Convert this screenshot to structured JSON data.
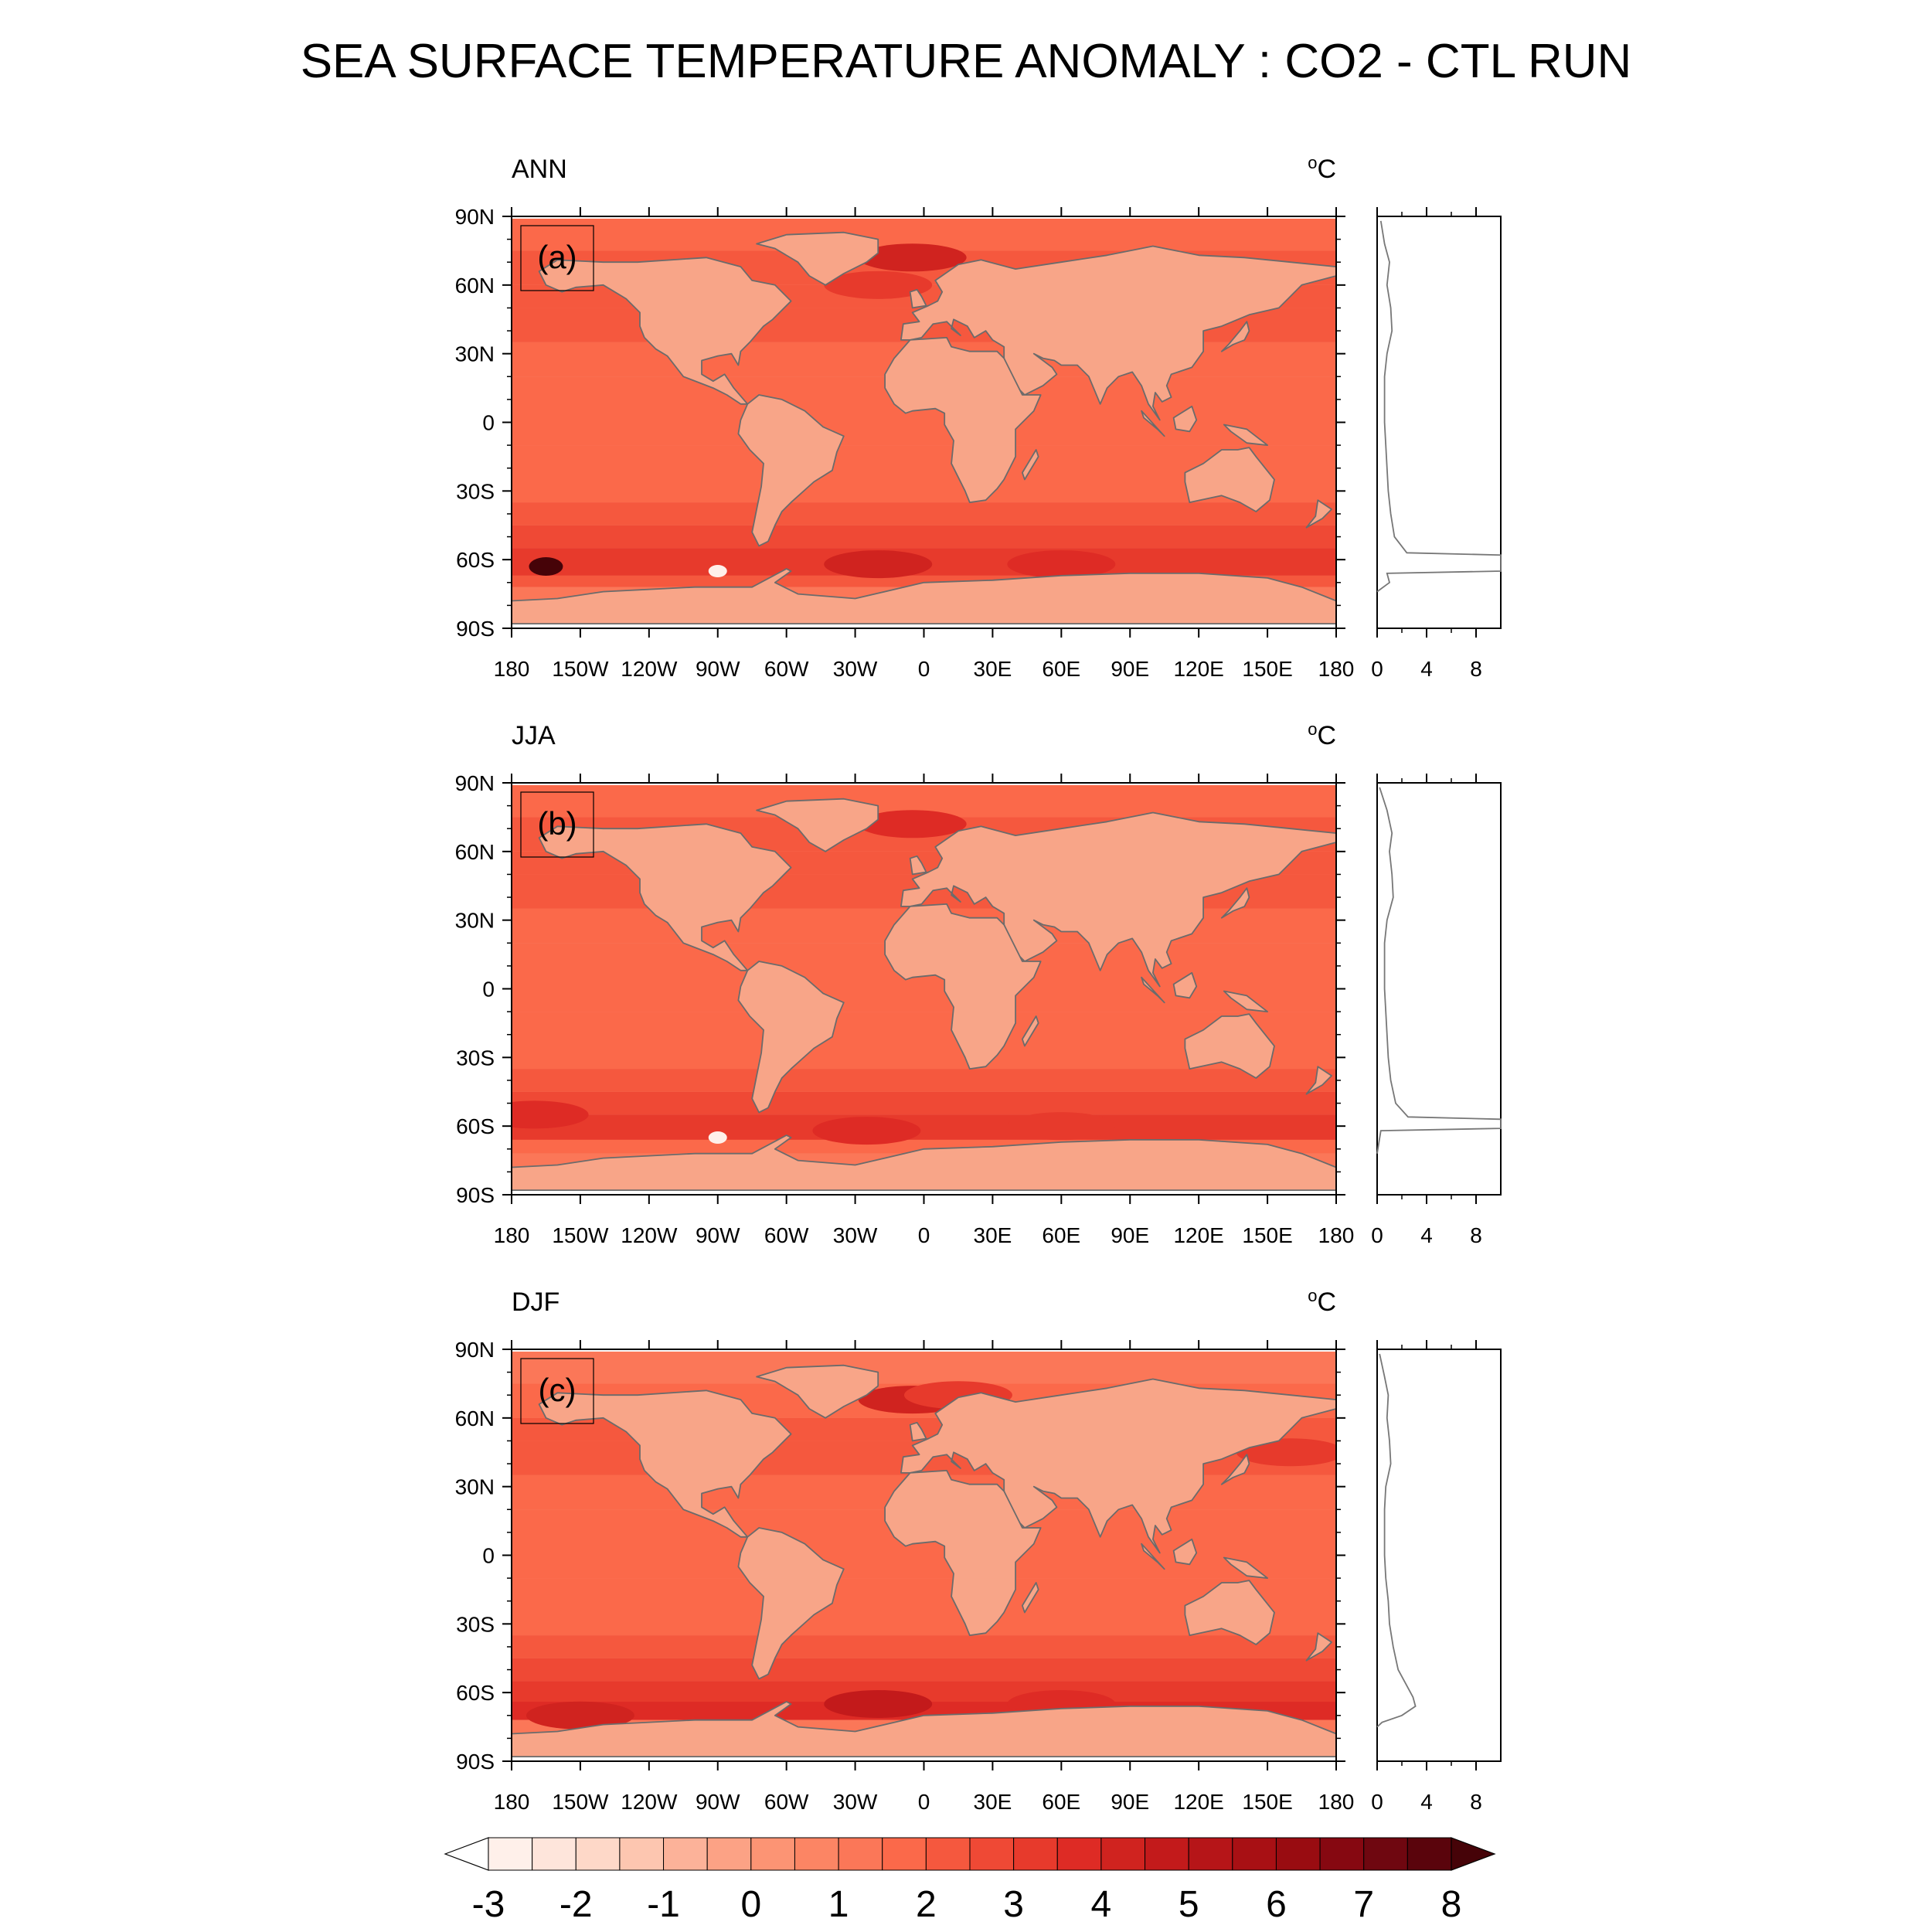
{
  "title": "SEA SURFACE TEMPERATURE ANOMALY : CO2 - CTL RUN",
  "colors": {
    "land": "#f8a588",
    "ocean_base": "#f8957a",
    "coast": "#6b6b6b",
    "axis": "#000000",
    "profile_line": "#777777"
  },
  "chart_data": [
    {
      "type": "heatmap",
      "title": "ANN",
      "panel_label": "(a)",
      "unit": "oC",
      "ylim": [
        -90,
        90
      ],
      "xlim": [
        -180,
        180
      ],
      "x_ticks": [
        "180",
        "150W",
        "120W",
        "90W",
        "60W",
        "30W",
        "0",
        "30E",
        "60E",
        "90E",
        "120E",
        "150E",
        "180"
      ],
      "y_ticks": [
        "90N",
        "60N",
        "30N",
        "0",
        "30S",
        "60S",
        "90S"
      ],
      "zonal_bands": [
        {
          "lat_from": 89,
          "lat_to": 75,
          "value": 1.5
        },
        {
          "lat_from": 75,
          "lat_to": 60,
          "value": 2.0
        },
        {
          "lat_from": 60,
          "lat_to": 50,
          "value": 2.0
        },
        {
          "lat_from": 50,
          "lat_to": 35,
          "value": 2.3
        },
        {
          "lat_from": 35,
          "lat_to": 20,
          "value": 1.8
        },
        {
          "lat_from": 20,
          "lat_to": -10,
          "value": 1.7
        },
        {
          "lat_from": -10,
          "lat_to": -35,
          "value": 1.8
        },
        {
          "lat_from": -35,
          "lat_to": -45,
          "value": 2.2
        },
        {
          "lat_from": -45,
          "lat_to": -55,
          "value": 2.6
        },
        {
          "lat_from": -55,
          "lat_to": -67,
          "value": 3.2
        },
        {
          "lat_from": -67,
          "lat_to": -72,
          "value": 2.0
        },
        {
          "lat_from": -72,
          "lat_to": -88,
          "value": 1.2
        }
      ],
      "hotspots": [
        {
          "lon": -5,
          "lat": 72,
          "value": 4.0
        },
        {
          "lon": -20,
          "lat": 60,
          "value": 3.0
        },
        {
          "lon": -165,
          "lat": -63,
          "value": 8.0
        },
        {
          "lon": -20,
          "lat": -62,
          "value": 4.3
        },
        {
          "lon": 60,
          "lat": -62,
          "value": 3.5
        },
        {
          "lon": -90,
          "lat": -65,
          "value": -3.0
        }
      ],
      "profile": {
        "xlim": [
          0,
          10
        ],
        "x_ticks": [
          0,
          4,
          8
        ],
        "points": [
          {
            "lat": 88,
            "value": 0.3
          },
          {
            "lat": 78,
            "value": 0.6
          },
          {
            "lat": 70,
            "value": 1.0
          },
          {
            "lat": 60,
            "value": 0.8
          },
          {
            "lat": 50,
            "value": 1.1
          },
          {
            "lat": 40,
            "value": 1.2
          },
          {
            "lat": 30,
            "value": 0.8
          },
          {
            "lat": 20,
            "value": 0.6
          },
          {
            "lat": 10,
            "value": 0.6
          },
          {
            "lat": 0,
            "value": 0.6
          },
          {
            "lat": -10,
            "value": 0.7
          },
          {
            "lat": -20,
            "value": 0.8
          },
          {
            "lat": -30,
            "value": 0.9
          },
          {
            "lat": -40,
            "value": 1.1
          },
          {
            "lat": -50,
            "value": 1.4
          },
          {
            "lat": -57,
            "value": 2.4
          },
          {
            "lat": -58,
            "value": 10.0
          },
          {
            "lat": -65,
            "value": 10.0
          },
          {
            "lat": -66,
            "value": 0.8
          },
          {
            "lat": -70,
            "value": 1.0
          },
          {
            "lat": -74,
            "value": 0.0
          }
        ]
      }
    },
    {
      "type": "heatmap",
      "title": "JJA",
      "panel_label": "(b)",
      "unit": "oC",
      "ylim": [
        -90,
        90
      ],
      "xlim": [
        -180,
        180
      ],
      "x_ticks": [
        "180",
        "150W",
        "120W",
        "90W",
        "60W",
        "30W",
        "0",
        "30E",
        "60E",
        "90E",
        "120E",
        "150E",
        "180"
      ],
      "y_ticks": [
        "90N",
        "60N",
        "30N",
        "0",
        "30S",
        "60S",
        "90S"
      ],
      "zonal_bands": [
        {
          "lat_from": 89,
          "lat_to": 75,
          "value": 1.6
        },
        {
          "lat_from": 75,
          "lat_to": 60,
          "value": 2.2
        },
        {
          "lat_from": 60,
          "lat_to": 50,
          "value": 2.2
        },
        {
          "lat_from": 50,
          "lat_to": 35,
          "value": 2.4
        },
        {
          "lat_from": 35,
          "lat_to": 20,
          "value": 1.9
        },
        {
          "lat_from": 20,
          "lat_to": -10,
          "value": 1.7
        },
        {
          "lat_from": -10,
          "lat_to": -35,
          "value": 1.8
        },
        {
          "lat_from": -35,
          "lat_to": -45,
          "value": 2.2
        },
        {
          "lat_from": -45,
          "lat_to": -55,
          "value": 2.7
        },
        {
          "lat_from": -55,
          "lat_to": -66,
          "value": 3.1
        },
        {
          "lat_from": -66,
          "lat_to": -72,
          "value": 1.7
        },
        {
          "lat_from": -72,
          "lat_to": -88,
          "value": 1.2
        }
      ],
      "hotspots": [
        {
          "lon": -5,
          "lat": 72,
          "value": 3.5
        },
        {
          "lon": -170,
          "lat": -55,
          "value": 3.8
        },
        {
          "lon": -25,
          "lat": -62,
          "value": 3.8
        },
        {
          "lon": 60,
          "lat": -60,
          "value": 3.3
        },
        {
          "lon": -90,
          "lat": -65,
          "value": -3.0
        }
      ],
      "profile": {
        "xlim": [
          0,
          10
        ],
        "x_ticks": [
          0,
          4,
          8
        ],
        "points": [
          {
            "lat": 88,
            "value": 0.2
          },
          {
            "lat": 78,
            "value": 0.8
          },
          {
            "lat": 68,
            "value": 1.2
          },
          {
            "lat": 60,
            "value": 1.0
          },
          {
            "lat": 50,
            "value": 1.2
          },
          {
            "lat": 40,
            "value": 1.3
          },
          {
            "lat": 30,
            "value": 0.8
          },
          {
            "lat": 20,
            "value": 0.6
          },
          {
            "lat": 10,
            "value": 0.6
          },
          {
            "lat": 0,
            "value": 0.6
          },
          {
            "lat": -10,
            "value": 0.7
          },
          {
            "lat": -20,
            "value": 0.8
          },
          {
            "lat": -30,
            "value": 0.9
          },
          {
            "lat": -40,
            "value": 1.1
          },
          {
            "lat": -50,
            "value": 1.5
          },
          {
            "lat": -56,
            "value": 2.5
          },
          {
            "lat": -57,
            "value": 10.0
          },
          {
            "lat": -61,
            "value": 10.0
          },
          {
            "lat": -62,
            "value": 0.3
          },
          {
            "lat": -72,
            "value": 0.0
          }
        ]
      }
    },
    {
      "type": "heatmap",
      "title": "DJF",
      "panel_label": "(c)",
      "unit": "oC",
      "ylim": [
        -90,
        90
      ],
      "xlim": [
        -180,
        180
      ],
      "x_ticks": [
        "180",
        "150W",
        "120W",
        "90W",
        "60W",
        "30W",
        "0",
        "30E",
        "60E",
        "90E",
        "120E",
        "150E",
        "180"
      ],
      "y_ticks": [
        "90N",
        "60N",
        "30N",
        "0",
        "30S",
        "60S",
        "90S"
      ],
      "zonal_bands": [
        {
          "lat_from": 89,
          "lat_to": 75,
          "value": 1.4
        },
        {
          "lat_from": 75,
          "lat_to": 60,
          "value": 1.9
        },
        {
          "lat_from": 60,
          "lat_to": 50,
          "value": 2.0
        },
        {
          "lat_from": 50,
          "lat_to": 35,
          "value": 2.3
        },
        {
          "lat_from": 35,
          "lat_to": 20,
          "value": 1.8
        },
        {
          "lat_from": 20,
          "lat_to": -10,
          "value": 1.7
        },
        {
          "lat_from": -10,
          "lat_to": -35,
          "value": 1.8
        },
        {
          "lat_from": -35,
          "lat_to": -45,
          "value": 2.2
        },
        {
          "lat_from": -45,
          "lat_to": -55,
          "value": 2.6
        },
        {
          "lat_from": -55,
          "lat_to": -64,
          "value": 3.2
        },
        {
          "lat_from": -64,
          "lat_to": -72,
          "value": 3.6
        },
        {
          "lat_from": -72,
          "lat_to": -88,
          "value": 1.2
        }
      ],
      "hotspots": [
        {
          "lon": -5,
          "lat": 68,
          "value": 4.0
        },
        {
          "lon": 15,
          "lat": 70,
          "value": 3.2
        },
        {
          "lon": -20,
          "lat": -65,
          "value": 4.8
        },
        {
          "lon": 60,
          "lat": -65,
          "value": 3.8
        },
        {
          "lon": -150,
          "lat": -70,
          "value": 4.0
        },
        {
          "lon": 160,
          "lat": 45,
          "value": 3.0
        }
      ],
      "profile": {
        "xlim": [
          0,
          10
        ],
        "x_ticks": [
          0,
          4,
          8
        ],
        "points": [
          {
            "lat": 88,
            "value": 0.2
          },
          {
            "lat": 78,
            "value": 0.6
          },
          {
            "lat": 70,
            "value": 0.9
          },
          {
            "lat": 60,
            "value": 0.8
          },
          {
            "lat": 50,
            "value": 1.0
          },
          {
            "lat": 40,
            "value": 1.1
          },
          {
            "lat": 30,
            "value": 0.7
          },
          {
            "lat": 20,
            "value": 0.6
          },
          {
            "lat": 10,
            "value": 0.6
          },
          {
            "lat": 0,
            "value": 0.6
          },
          {
            "lat": -10,
            "value": 0.7
          },
          {
            "lat": -20,
            "value": 0.9
          },
          {
            "lat": -30,
            "value": 1.0
          },
          {
            "lat": -40,
            "value": 1.3
          },
          {
            "lat": -50,
            "value": 1.7
          },
          {
            "lat": -56,
            "value": 2.3
          },
          {
            "lat": -62,
            "value": 2.9
          },
          {
            "lat": -66,
            "value": 3.1
          },
          {
            "lat": -70,
            "value": 2.0
          },
          {
            "lat": -73,
            "value": 0.4
          },
          {
            "lat": -75,
            "value": 0.0
          }
        ]
      }
    }
  ],
  "colorbar": {
    "labels": [
      "-3",
      "-2",
      "-1",
      "0",
      "1",
      "2",
      "3",
      "4",
      "5",
      "6",
      "7",
      "8"
    ],
    "levels": [
      -3,
      -2.5,
      -2,
      -1.5,
      -1,
      -0.5,
      0,
      0.5,
      1,
      1.5,
      2,
      2.5,
      3,
      3.5,
      4,
      4.5,
      5,
      5.5,
      6,
      6.5,
      7,
      7.5,
      8
    ],
    "colors": [
      "#ffffff",
      "#fff0ea",
      "#fee5db",
      "#fed8c8",
      "#fdc6b0",
      "#fcb299",
      "#fca285",
      "#fc9474",
      "#fc8564",
      "#fb7758",
      "#fb694a",
      "#f5583e",
      "#ef4935",
      "#e73a2c",
      "#de2b25",
      "#d0231f",
      "#c31a1b",
      "#b61518",
      "#a81014",
      "#990c11",
      "#860811",
      "#6f0710",
      "#5a040c",
      "#460308"
    ]
  }
}
